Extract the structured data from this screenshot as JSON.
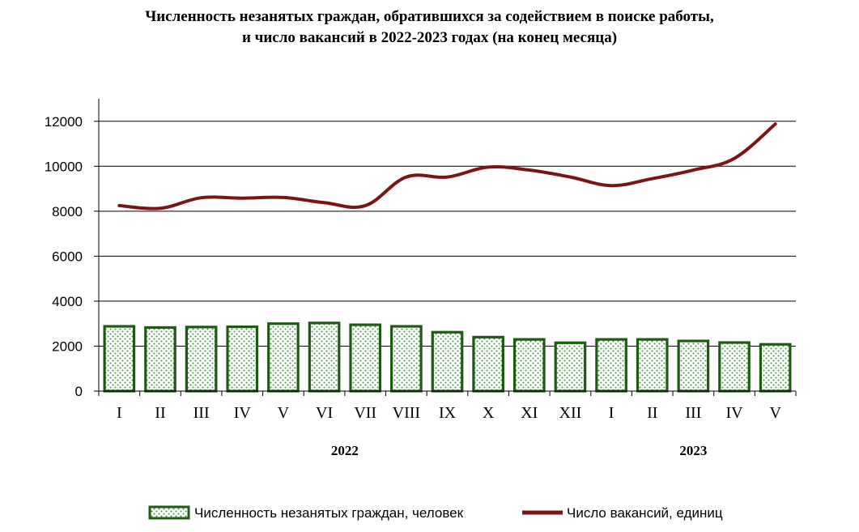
{
  "chart_data": {
    "type": "bar",
    "title_lines": [
      "Численность незанятых граждан, обратившихся за содействием в поиске работы,",
      "и число вакансий в 2022-2023 годах (на конец месяца)"
    ],
    "categories": [
      "I",
      "II",
      "III",
      "IV",
      "V",
      "VI",
      "VII",
      "VIII",
      "IX",
      "X",
      "XI",
      "XII",
      "I",
      "II",
      "III",
      "IV",
      "V"
    ],
    "year_groups": [
      {
        "label": "2022",
        "start": 0,
        "end": 11
      },
      {
        "label": "2023",
        "start": 12,
        "end": 16
      }
    ],
    "ylim": [
      0,
      13000
    ],
    "yticks": [
      0,
      2000,
      4000,
      6000,
      8000,
      10000,
      12000
    ],
    "grid": true,
    "legend_position": "bottom",
    "series": [
      {
        "name": "Численность незанятых граждан, человек",
        "kind": "bar",
        "color": "#1e5a14",
        "values": [
          2880,
          2830,
          2850,
          2860,
          3000,
          3030,
          2950,
          2880,
          2620,
          2400,
          2300,
          2150,
          2300,
          2300,
          2230,
          2160,
          2080
        ]
      },
      {
        "name": "Число вакансий, единиц",
        "kind": "line",
        "color": "#7b1414",
        "values": [
          8250,
          8130,
          8600,
          8580,
          8610,
          8380,
          8250,
          9520,
          9520,
          9960,
          9830,
          9520,
          9140,
          9450,
          9830,
          10350,
          11880
        ]
      }
    ]
  }
}
